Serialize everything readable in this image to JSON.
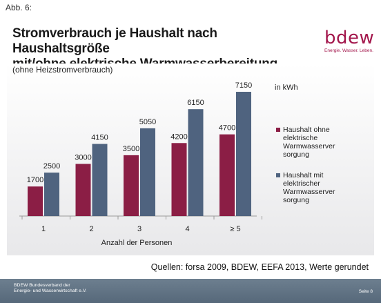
{
  "figure_label": "Abb. 6:",
  "title_line1": "Stromverbrauch je Haushalt nach Haushaltsgröße",
  "title_line2": "mit/ohne elektrische Warmwasserbereitung",
  "logo": {
    "word": "bdew",
    "tagline": "Energie. Wasser. Leben."
  },
  "subtitle": "(ohne Heizstromverbrauch)",
  "unit": "in kWh",
  "source": "Quellen: forsa 2009, BDEW, EEFA 2013, Werte gerundet",
  "footer": {
    "line1": "BDEW Bundesverband der",
    "line2": "Energie- und Wasserwirtschaft e.V.",
    "page": "Seite 8"
  },
  "colors": {
    "ohne": "#8b1e45",
    "mit": "#4f637f",
    "brand": "#a3174c"
  },
  "chart_data": {
    "type": "bar",
    "categories": [
      "1",
      "2",
      "3",
      "4",
      "≥ 5"
    ],
    "xlabel": "Anzahl der Personen",
    "ylabel": "",
    "ylim": [
      0,
      7150
    ],
    "grid": false,
    "legend_position": "right",
    "series": [
      {
        "name": "Haushalt ohne elektrische Warmwasserver sorgung",
        "values": [
          1700,
          3000,
          3500,
          4200,
          4700
        ]
      },
      {
        "name": "Haushalt mit elektrischer Warmwasserver sorgung",
        "values": [
          2500,
          4150,
          5050,
          6150,
          7150
        ]
      }
    ],
    "legend_lines": [
      [
        "Haushalt ohne",
        "elektrische",
        "Warmwasserver",
        "sorgung"
      ],
      [
        "Haushalt mit",
        "elektrischer",
        "Warmwasserver",
        "sorgung"
      ]
    ]
  }
}
